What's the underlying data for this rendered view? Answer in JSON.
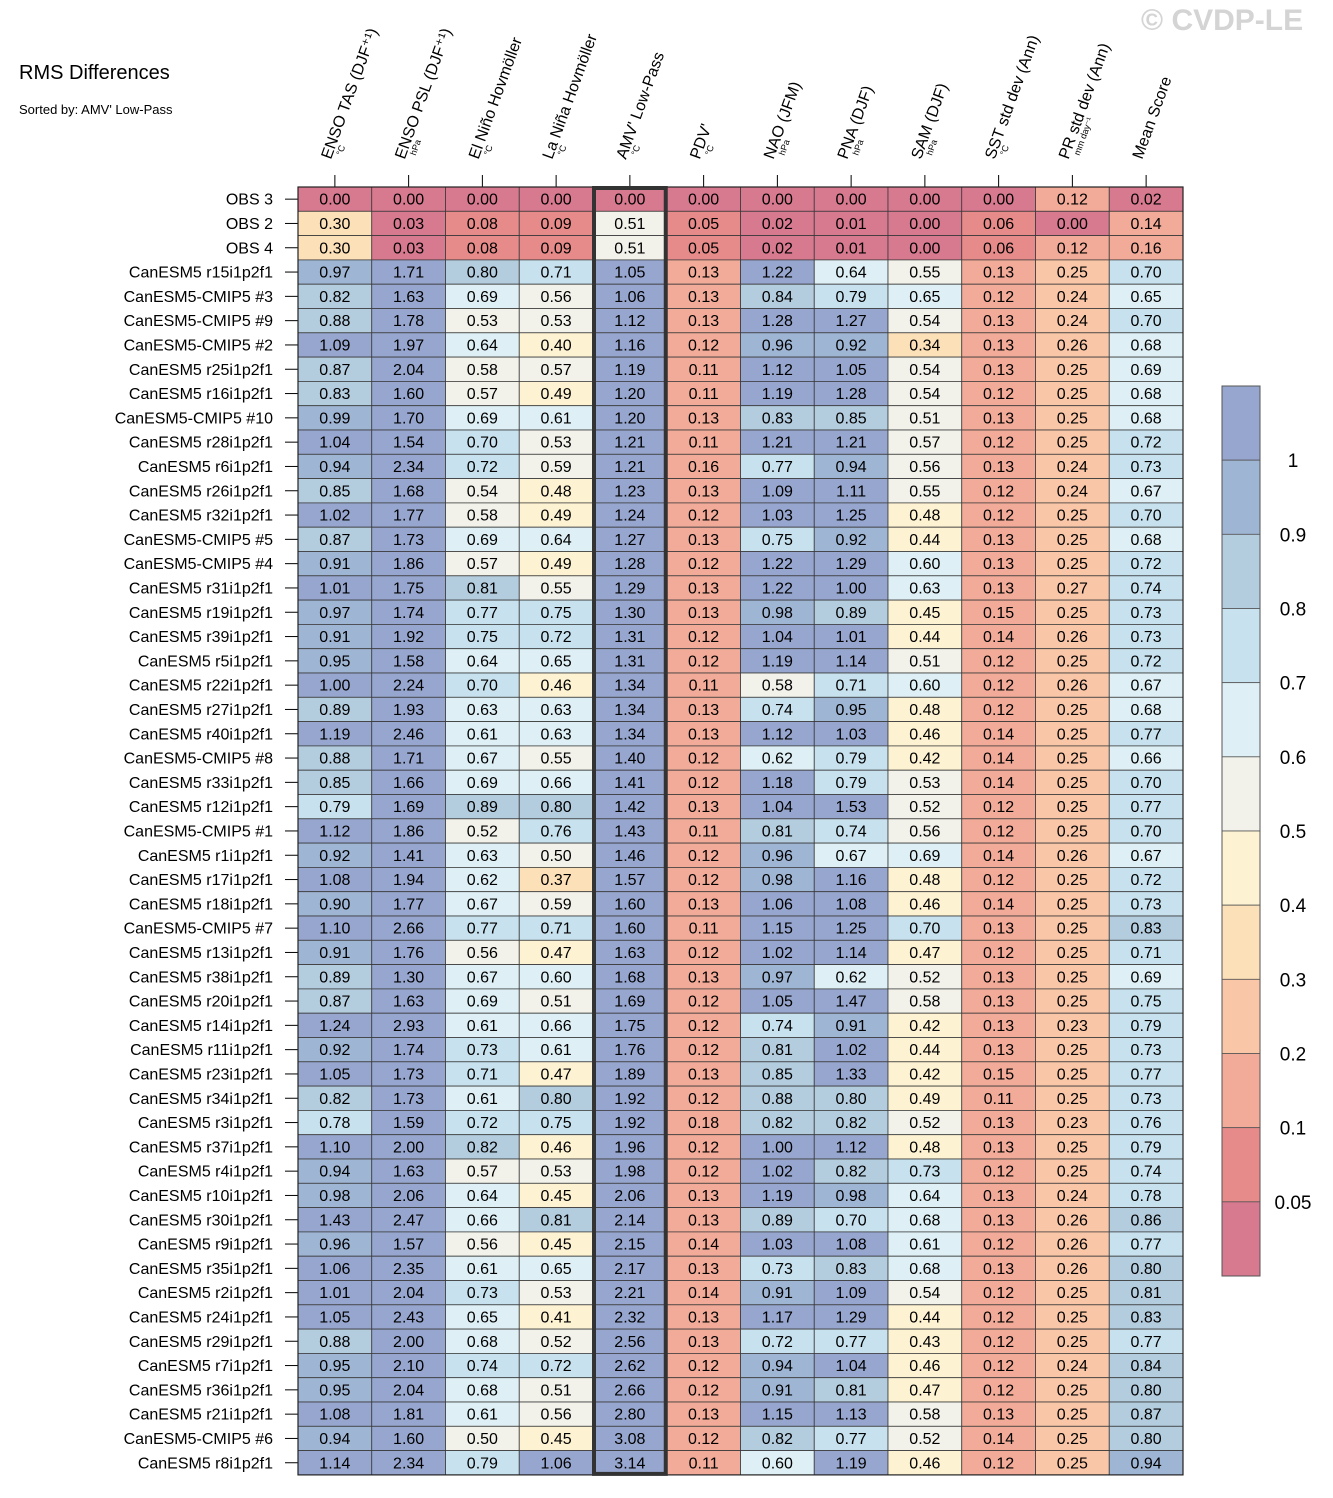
{
  "title": "RMS Differences",
  "subtitle": "Sorted by: AMV' Low-Pass",
  "watermark": "© CVDP-LE",
  "chart_data": {
    "type": "heatmap",
    "columns": [
      {
        "label": "ENSO TAS (DJF⁺¹)",
        "unit": "°C"
      },
      {
        "label": "ENSO PSL (DJF⁺¹)",
        "unit": "hPa"
      },
      {
        "label": "El Niño Hovmöller",
        "unit": "°C"
      },
      {
        "label": "La Niña Hovmöller",
        "unit": "°C"
      },
      {
        "label": "AMV' Low-Pass",
        "unit": "°C"
      },
      {
        "label": "PDV'",
        "unit": "°C"
      },
      {
        "label": "NAO (JFM)",
        "unit": "hPa"
      },
      {
        "label": "PNA (DJF)",
        "unit": "hPa"
      },
      {
        "label": "SAM (DJF)",
        "unit": "hPa"
      },
      {
        "label": "SST std dev (Ann)",
        "unit": "°C"
      },
      {
        "label": "PR std dev (Ann)",
        "unit": "mm day⁻¹"
      },
      {
        "label": "Mean Score",
        "unit": ""
      }
    ],
    "highlight_column": 4,
    "rows": [
      {
        "name": "OBS 3",
        "values": [
          0.0,
          0.0,
          0.0,
          0.0,
          0.0,
          0.0,
          0.0,
          0.0,
          0.0,
          0.0,
          0.12,
          0.02
        ]
      },
      {
        "name": "OBS 2",
        "values": [
          0.3,
          0.03,
          0.08,
          0.09,
          0.51,
          0.05,
          0.02,
          0.01,
          0.0,
          0.06,
          0.0,
          0.14
        ]
      },
      {
        "name": "OBS 4",
        "values": [
          0.3,
          0.03,
          0.08,
          0.09,
          0.51,
          0.05,
          0.02,
          0.01,
          0.0,
          0.06,
          0.12,
          0.16
        ]
      },
      {
        "name": "CanESM5 r15i1p2f1",
        "values": [
          0.97,
          1.71,
          0.8,
          0.71,
          1.05,
          0.13,
          1.22,
          0.64,
          0.55,
          0.13,
          0.25,
          0.7
        ]
      },
      {
        "name": "CanESM5-CMIP5 #3",
        "values": [
          0.82,
          1.63,
          0.69,
          0.56,
          1.06,
          0.13,
          0.84,
          0.79,
          0.65,
          0.12,
          0.24,
          0.65
        ]
      },
      {
        "name": "CanESM5-CMIP5 #9",
        "values": [
          0.88,
          1.78,
          0.53,
          0.53,
          1.12,
          0.13,
          1.28,
          1.27,
          0.54,
          0.13,
          0.24,
          0.7
        ]
      },
      {
        "name": "CanESM5-CMIP5 #2",
        "values": [
          1.09,
          1.97,
          0.64,
          0.4,
          1.16,
          0.12,
          0.96,
          0.92,
          0.34,
          0.13,
          0.26,
          0.68
        ]
      },
      {
        "name": "CanESM5 r25i1p2f1",
        "values": [
          0.87,
          2.04,
          0.58,
          0.57,
          1.19,
          0.11,
          1.12,
          1.05,
          0.54,
          0.13,
          0.25,
          0.69
        ]
      },
      {
        "name": "CanESM5 r16i1p2f1",
        "values": [
          0.83,
          1.6,
          0.57,
          0.49,
          1.2,
          0.11,
          1.19,
          1.28,
          0.54,
          0.12,
          0.25,
          0.68
        ]
      },
      {
        "name": "CanESM5-CMIP5 #10",
        "values": [
          0.99,
          1.7,
          0.69,
          0.61,
          1.2,
          0.13,
          0.83,
          0.85,
          0.51,
          0.13,
          0.25,
          0.68
        ]
      },
      {
        "name": "CanESM5 r28i1p2f1",
        "values": [
          1.04,
          1.54,
          0.7,
          0.53,
          1.21,
          0.11,
          1.21,
          1.21,
          0.57,
          0.12,
          0.25,
          0.72
        ]
      },
      {
        "name": "CanESM5 r6i1p2f1",
        "values": [
          0.94,
          2.34,
          0.72,
          0.59,
          1.21,
          0.16,
          0.77,
          0.94,
          0.56,
          0.13,
          0.24,
          0.73
        ]
      },
      {
        "name": "CanESM5 r26i1p2f1",
        "values": [
          0.85,
          1.68,
          0.54,
          0.48,
          1.23,
          0.13,
          1.09,
          1.11,
          0.55,
          0.12,
          0.24,
          0.67
        ]
      },
      {
        "name": "CanESM5 r32i1p2f1",
        "values": [
          1.02,
          1.77,
          0.58,
          0.49,
          1.24,
          0.12,
          1.03,
          1.25,
          0.48,
          0.12,
          0.25,
          0.7
        ]
      },
      {
        "name": "CanESM5-CMIP5 #5",
        "values": [
          0.87,
          1.73,
          0.69,
          0.64,
          1.27,
          0.13,
          0.75,
          0.92,
          0.44,
          0.13,
          0.25,
          0.68
        ]
      },
      {
        "name": "CanESM5-CMIP5 #4",
        "values": [
          0.91,
          1.86,
          0.57,
          0.49,
          1.28,
          0.12,
          1.22,
          1.29,
          0.6,
          0.13,
          0.25,
          0.72
        ]
      },
      {
        "name": "CanESM5 r31i1p2f1",
        "values": [
          1.01,
          1.75,
          0.81,
          0.55,
          1.29,
          0.13,
          1.22,
          1.0,
          0.63,
          0.13,
          0.27,
          0.74
        ]
      },
      {
        "name": "CanESM5 r19i1p2f1",
        "values": [
          0.97,
          1.74,
          0.77,
          0.75,
          1.3,
          0.13,
          0.98,
          0.89,
          0.45,
          0.15,
          0.25,
          0.73
        ]
      },
      {
        "name": "CanESM5 r39i1p2f1",
        "values": [
          0.91,
          1.92,
          0.75,
          0.72,
          1.31,
          0.12,
          1.04,
          1.01,
          0.44,
          0.14,
          0.26,
          0.73
        ]
      },
      {
        "name": "CanESM5 r5i1p2f1",
        "values": [
          0.95,
          1.58,
          0.64,
          0.65,
          1.31,
          0.12,
          1.19,
          1.14,
          0.51,
          0.12,
          0.25,
          0.72
        ]
      },
      {
        "name": "CanESM5 r22i1p2f1",
        "values": [
          1.0,
          2.24,
          0.7,
          0.46,
          1.34,
          0.11,
          0.58,
          0.71,
          0.6,
          0.12,
          0.26,
          0.67
        ]
      },
      {
        "name": "CanESM5 r27i1p2f1",
        "values": [
          0.89,
          1.93,
          0.63,
          0.63,
          1.34,
          0.13,
          0.74,
          0.95,
          0.48,
          0.12,
          0.25,
          0.68
        ]
      },
      {
        "name": "CanESM5 r40i1p2f1",
        "values": [
          1.19,
          2.46,
          0.61,
          0.63,
          1.34,
          0.13,
          1.12,
          1.03,
          0.46,
          0.14,
          0.25,
          0.77
        ]
      },
      {
        "name": "CanESM5-CMIP5 #8",
        "values": [
          0.88,
          1.71,
          0.67,
          0.55,
          1.4,
          0.12,
          0.62,
          0.79,
          0.42,
          0.14,
          0.25,
          0.66
        ]
      },
      {
        "name": "CanESM5 r33i1p2f1",
        "values": [
          0.85,
          1.66,
          0.69,
          0.66,
          1.41,
          0.12,
          1.18,
          0.79,
          0.53,
          0.14,
          0.25,
          0.7
        ]
      },
      {
        "name": "CanESM5 r12i1p2f1",
        "values": [
          0.79,
          1.69,
          0.89,
          0.8,
          1.42,
          0.13,
          1.04,
          1.53,
          0.52,
          0.12,
          0.25,
          0.77
        ]
      },
      {
        "name": "CanESM5-CMIP5 #1",
        "values": [
          1.12,
          1.86,
          0.52,
          0.76,
          1.43,
          0.11,
          0.81,
          0.74,
          0.56,
          0.12,
          0.25,
          0.7
        ]
      },
      {
        "name": "CanESM5 r1i1p2f1",
        "values": [
          0.92,
          1.41,
          0.63,
          0.5,
          1.46,
          0.12,
          0.96,
          0.67,
          0.69,
          0.14,
          0.26,
          0.67
        ]
      },
      {
        "name": "CanESM5 r17i1p2f1",
        "values": [
          1.08,
          1.94,
          0.62,
          0.37,
          1.57,
          0.12,
          0.98,
          1.16,
          0.48,
          0.12,
          0.25,
          0.72
        ]
      },
      {
        "name": "CanESM5 r18i1p2f1",
        "values": [
          0.9,
          1.77,
          0.67,
          0.59,
          1.6,
          0.13,
          1.06,
          1.08,
          0.46,
          0.14,
          0.25,
          0.73
        ]
      },
      {
        "name": "CanESM5-CMIP5 #7",
        "values": [
          1.1,
          2.66,
          0.77,
          0.71,
          1.6,
          0.11,
          1.15,
          1.25,
          0.7,
          0.13,
          0.25,
          0.83
        ]
      },
      {
        "name": "CanESM5 r13i1p2f1",
        "values": [
          0.91,
          1.76,
          0.56,
          0.47,
          1.63,
          0.12,
          1.02,
          1.14,
          0.47,
          0.12,
          0.25,
          0.71
        ]
      },
      {
        "name": "CanESM5 r38i1p2f1",
        "values": [
          0.89,
          1.3,
          0.67,
          0.6,
          1.68,
          0.13,
          0.97,
          0.62,
          0.52,
          0.13,
          0.25,
          0.69
        ]
      },
      {
        "name": "CanESM5 r20i1p2f1",
        "values": [
          0.87,
          1.63,
          0.69,
          0.51,
          1.69,
          0.12,
          1.05,
          1.47,
          0.58,
          0.13,
          0.25,
          0.75
        ]
      },
      {
        "name": "CanESM5 r14i1p2f1",
        "values": [
          1.24,
          2.93,
          0.61,
          0.66,
          1.75,
          0.12,
          0.74,
          0.91,
          0.42,
          0.13,
          0.23,
          0.79
        ]
      },
      {
        "name": "CanESM5 r11i1p2f1",
        "values": [
          0.92,
          1.74,
          0.73,
          0.61,
          1.76,
          0.12,
          0.81,
          1.02,
          0.44,
          0.13,
          0.25,
          0.73
        ]
      },
      {
        "name": "CanESM5 r23i1p2f1",
        "values": [
          1.05,
          1.73,
          0.71,
          0.47,
          1.89,
          0.13,
          0.85,
          1.33,
          0.42,
          0.15,
          0.25,
          0.77
        ]
      },
      {
        "name": "CanESM5 r34i1p2f1",
        "values": [
          0.82,
          1.73,
          0.61,
          0.8,
          1.92,
          0.12,
          0.88,
          0.8,
          0.49,
          0.11,
          0.25,
          0.73
        ]
      },
      {
        "name": "CanESM5 r3i1p2f1",
        "values": [
          0.78,
          1.59,
          0.72,
          0.75,
          1.92,
          0.18,
          0.82,
          0.82,
          0.52,
          0.13,
          0.23,
          0.76
        ]
      },
      {
        "name": "CanESM5 r37i1p2f1",
        "values": [
          1.1,
          2.0,
          0.82,
          0.46,
          1.96,
          0.12,
          1.0,
          1.12,
          0.48,
          0.13,
          0.25,
          0.79
        ]
      },
      {
        "name": "CanESM5 r4i1p2f1",
        "values": [
          0.94,
          1.63,
          0.57,
          0.53,
          1.98,
          0.12,
          1.02,
          0.82,
          0.73,
          0.12,
          0.25,
          0.74
        ]
      },
      {
        "name": "CanESM5 r10i1p2f1",
        "values": [
          0.98,
          2.06,
          0.64,
          0.45,
          2.06,
          0.13,
          1.19,
          0.98,
          0.64,
          0.13,
          0.24,
          0.78
        ]
      },
      {
        "name": "CanESM5 r30i1p2f1",
        "values": [
          1.43,
          2.47,
          0.66,
          0.81,
          2.14,
          0.13,
          0.89,
          0.7,
          0.68,
          0.13,
          0.26,
          0.86
        ]
      },
      {
        "name": "CanESM5 r9i1p2f1",
        "values": [
          0.96,
          1.57,
          0.56,
          0.45,
          2.15,
          0.14,
          1.03,
          1.08,
          0.61,
          0.12,
          0.26,
          0.77
        ]
      },
      {
        "name": "CanESM5 r35i1p2f1",
        "values": [
          1.06,
          2.35,
          0.61,
          0.65,
          2.17,
          0.13,
          0.73,
          0.83,
          0.68,
          0.13,
          0.26,
          0.8
        ]
      },
      {
        "name": "CanESM5 r2i1p2f1",
        "values": [
          1.01,
          2.04,
          0.73,
          0.53,
          2.21,
          0.14,
          0.91,
          1.09,
          0.54,
          0.12,
          0.25,
          0.81
        ]
      },
      {
        "name": "CanESM5 r24i1p2f1",
        "values": [
          1.05,
          2.43,
          0.65,
          0.41,
          2.32,
          0.13,
          1.17,
          1.29,
          0.44,
          0.12,
          0.25,
          0.83
        ]
      },
      {
        "name": "CanESM5 r29i1p2f1",
        "values": [
          0.88,
          2.0,
          0.68,
          0.52,
          2.56,
          0.13,
          0.72,
          0.77,
          0.43,
          0.12,
          0.25,
          0.77
        ]
      },
      {
        "name": "CanESM5 r7i1p2f1",
        "values": [
          0.95,
          2.1,
          0.74,
          0.72,
          2.62,
          0.12,
          0.94,
          1.04,
          0.46,
          0.12,
          0.24,
          0.84
        ]
      },
      {
        "name": "CanESM5 r36i1p2f1",
        "values": [
          0.95,
          2.04,
          0.68,
          0.51,
          2.66,
          0.12,
          0.91,
          0.81,
          0.47,
          0.12,
          0.25,
          0.8
        ]
      },
      {
        "name": "CanESM5 r21i1p2f1",
        "values": [
          1.08,
          1.81,
          0.61,
          0.56,
          2.8,
          0.13,
          1.15,
          1.13,
          0.58,
          0.13,
          0.25,
          0.87
        ]
      },
      {
        "name": "CanESM5-CMIP5 #6",
        "values": [
          0.94,
          1.6,
          0.5,
          0.45,
          3.08,
          0.12,
          0.82,
          0.77,
          0.52,
          0.14,
          0.25,
          0.8
        ]
      },
      {
        "name": "CanESM5 r8i1p2f1",
        "values": [
          1.14,
          2.34,
          0.79,
          1.06,
          3.14,
          0.11,
          0.6,
          1.19,
          0.46,
          0.12,
          0.25,
          0.94
        ]
      }
    ],
    "color_levels": [
      0.05,
      0.1,
      0.2,
      0.3,
      0.4,
      0.5,
      0.6,
      0.7,
      0.8,
      0.9,
      1
    ],
    "colors": [
      "#d7798f",
      "#e68b89",
      "#f2ab98",
      "#f9c6a8",
      "#fce0b8",
      "#fdf2d2",
      "#f2f2ea",
      "#def0f5",
      "#c7e2ee",
      "#b3ccde",
      "#9fb5d4",
      "#96a6ce"
    ],
    "colorbar_labels": [
      "1",
      "0.9",
      "0.8",
      "0.7",
      "0.6",
      "0.5",
      "0.4",
      "0.3",
      "0.2",
      "0.1",
      "0.05"
    ]
  }
}
